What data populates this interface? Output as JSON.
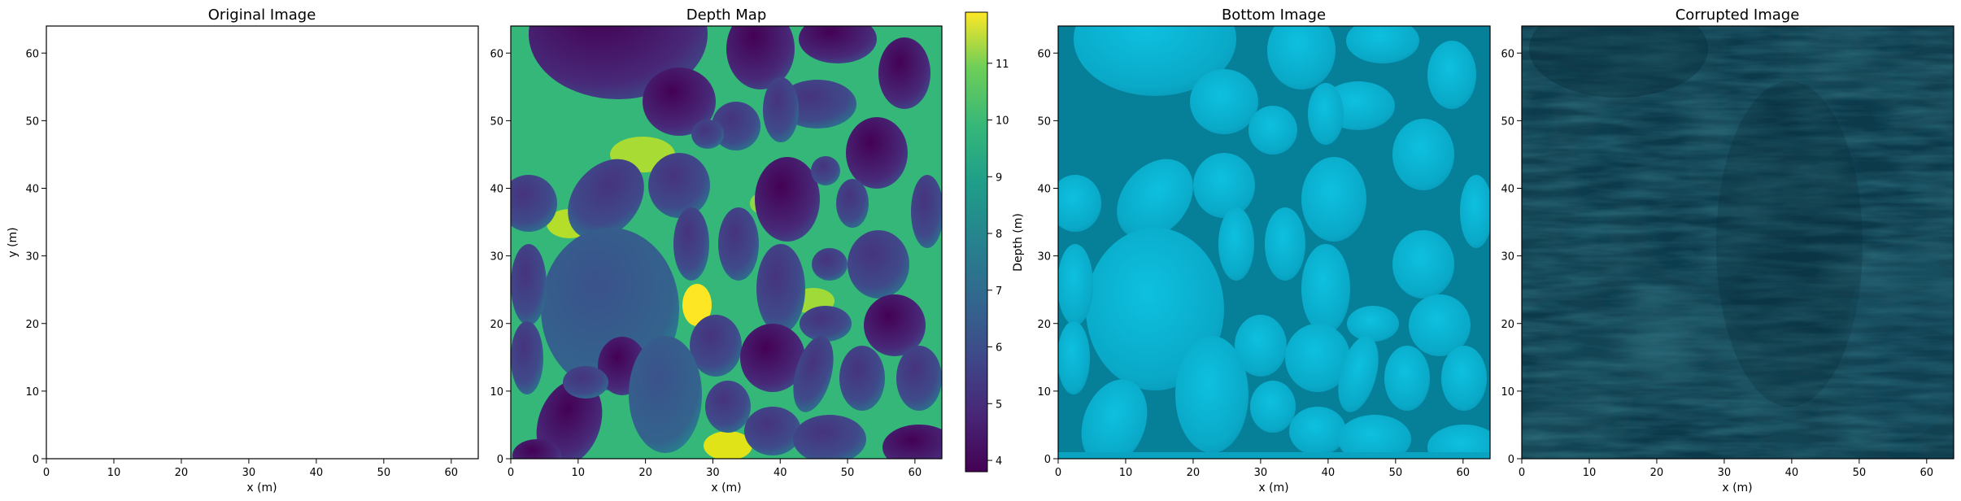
{
  "chart_data": [
    {
      "type": "heatmap",
      "title": "Original Image",
      "xlabel": "x (m)",
      "ylabel": "y (m)",
      "xlim": [
        0,
        64
      ],
      "ylim": [
        0,
        64
      ],
      "xticks": [
        0,
        10,
        20,
        30,
        40,
        50,
        60
      ],
      "yticks": [
        0,
        10,
        20,
        30,
        40,
        50,
        60
      ],
      "image": "blank white",
      "fill_color": "#ffffff"
    },
    {
      "type": "heatmap",
      "title": "Depth Map",
      "xlabel": "x (m)",
      "ylabel": "",
      "xlim": [
        0,
        64
      ],
      "ylim": [
        0,
        64
      ],
      "xticks": [
        0,
        10,
        20,
        30,
        40,
        50,
        60
      ],
      "yticks": [
        0,
        10,
        20,
        30,
        40,
        50,
        60
      ],
      "colormap": "viridis",
      "colorbar": {
        "label": "Depth (m)",
        "range": [
          3.8,
          11.9
        ],
        "ticks": [
          4,
          5,
          6,
          7,
          8,
          9,
          10,
          11
        ]
      },
      "value_range": [
        3.8,
        11.9
      ],
      "image": "rounded pebbles, shallow (purple, ~4-6 m) with deep gaps between them (green-yellow, ~8-12 m)"
    },
    {
      "type": "heatmap",
      "title": "Bottom Image",
      "xlabel": "x (m)",
      "ylabel": "",
      "xlim": [
        0,
        64
      ],
      "ylim": [
        0,
        64
      ],
      "xticks": [
        0,
        10,
        20,
        30,
        40,
        50,
        60
      ],
      "yticks": [
        0,
        10,
        20,
        30,
        40,
        50,
        60
      ],
      "image": "cyan pebble texture",
      "colors": {
        "stone_light": "#0bb8d8",
        "stone_mid": "#0aa4c2",
        "gap_dark": "#047f9a"
      }
    },
    {
      "type": "heatmap",
      "title": "Corrupted Image",
      "xlabel": "x (m)",
      "ylabel": "",
      "xlim": [
        0,
        64
      ],
      "ylim": [
        0,
        64
      ],
      "xticks": [
        0,
        10,
        20,
        30,
        40,
        50,
        60
      ],
      "yticks": [
        0,
        10,
        20,
        30,
        40,
        50,
        60
      ],
      "image": "dark teal noisy streaked texture",
      "colors": {
        "base": "#0c3646",
        "light": "#145066",
        "dark": "#072430"
      }
    }
  ]
}
